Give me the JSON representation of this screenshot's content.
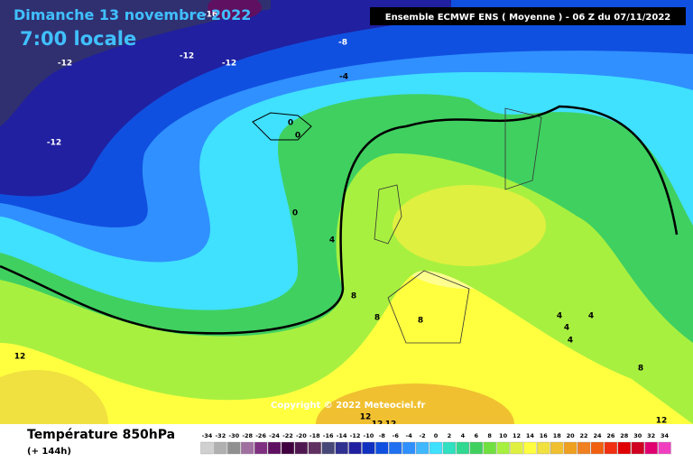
{
  "header": {
    "title": "Dimanche 13 novembre 2022",
    "time": "7:00 locale",
    "model": "Ensemble ECMWF ENS  ( Moyenne )  -  06 Z du 07/11/2022"
  },
  "copyright": "Copyright © 2022 Meteociel.fr",
  "footer": {
    "variable": "Température 850hPa",
    "lead": "(+ 144h)"
  },
  "legend": {
    "values": [
      -34,
      -32,
      -30,
      -28,
      -26,
      -24,
      -22,
      -20,
      -18,
      -16,
      -14,
      -12,
      -10,
      -8,
      -6,
      -4,
      -2,
      0,
      2,
      4,
      6,
      8,
      10,
      12,
      14,
      16,
      18,
      20,
      22,
      24,
      26,
      28,
      30,
      32,
      34
    ],
    "colors": [
      "#d0d0d0",
      "#b0b0b0",
      "#909090",
      "#a070a0",
      "#803080",
      "#601060",
      "#400040",
      "#501850",
      "#603060",
      "#484878",
      "#303090",
      "#2020a0",
      "#1030c0",
      "#1050e0",
      "#2070f0",
      "#3090ff",
      "#40b8ff",
      "#40e0ff",
      "#30e0c0",
      "#30d890",
      "#40d060",
      "#70e040",
      "#a8f040",
      "#e0f040",
      "#ffff40",
      "#f0e040",
      "#f0c030",
      "#f0a020",
      "#f08020",
      "#f06010",
      "#f03010",
      "#e00000",
      "#d00020",
      "#e00070",
      "#f040c0"
    ]
  },
  "contour_labels": [
    -16,
    -12,
    -12,
    -12,
    -8,
    -4,
    -12,
    0,
    0,
    0,
    4,
    8,
    8,
    8,
    12,
    4,
    4,
    4,
    4,
    8,
    12,
    12,
    12,
    12
  ]
}
